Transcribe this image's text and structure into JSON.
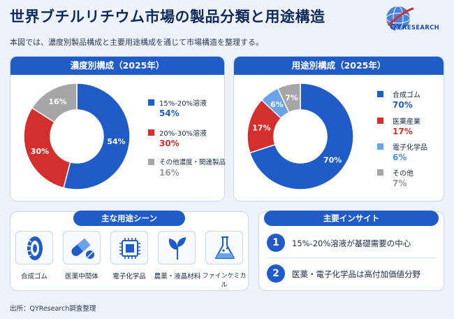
{
  "header": {
    "title": "世界ブチルリチウム市場の製品分類と用途構造",
    "subtitle": "本図では、濃度別製品構成と主要用途構成を通じて市場構造を整理する。",
    "logo_main": "QY",
    "logo_rest": "RESEARCH"
  },
  "chart_data": [
    {
      "type": "pie",
      "title": "濃度別構成（2025年）",
      "labels": [
        "15%-20%溶液",
        "20%-30%溶液",
        "その他濃度・関連製品"
      ],
      "values": [
        54,
        30,
        16
      ],
      "value_labels": [
        "54%",
        "30%",
        "16%"
      ],
      "colors": [
        "#1f5cc7",
        "#d32f2f",
        "#a6a6a6"
      ],
      "value_colors": [
        "#1f5cc7",
        "#d32f2f",
        "#9a9a9a"
      ]
    },
    {
      "type": "pie",
      "title": "用途別構成（2025年）",
      "labels": [
        "合成ゴム",
        "医薬産業",
        "電子化学品",
        "その他"
      ],
      "values": [
        70,
        17,
        6,
        7
      ],
      "value_labels": [
        "70%",
        "17%",
        "6%",
        "7%"
      ],
      "colors": [
        "#1f5cc7",
        "#d32f2f",
        "#6aa3e8",
        "#a6a6a6"
      ],
      "value_colors": [
        "#1f5cc7",
        "#d32f2f",
        "#4a8ce0",
        "#9a9a9a"
      ]
    }
  ],
  "scenes": {
    "title": "主な用途シーン",
    "items": [
      {
        "label": "合成ゴム",
        "icon": "tire-icon"
      },
      {
        "label": "医薬中間体",
        "icon": "capsule-icon"
      },
      {
        "label": "電子化学品",
        "icon": "chip-icon"
      },
      {
        "label": "農薬・液晶材料",
        "icon": "leaf-icon"
      },
      {
        "label": "ファインケミカル",
        "icon": "flask-icon"
      }
    ]
  },
  "insights": {
    "title": "主要インサイト",
    "items": [
      {
        "num": "1",
        "text": "15%-20%溶液が基礎需要の中心"
      },
      {
        "num": "2",
        "text": "医薬・電子化学品は高付加価値分野"
      }
    ]
  },
  "source": "出所：QYResearch調査整理"
}
